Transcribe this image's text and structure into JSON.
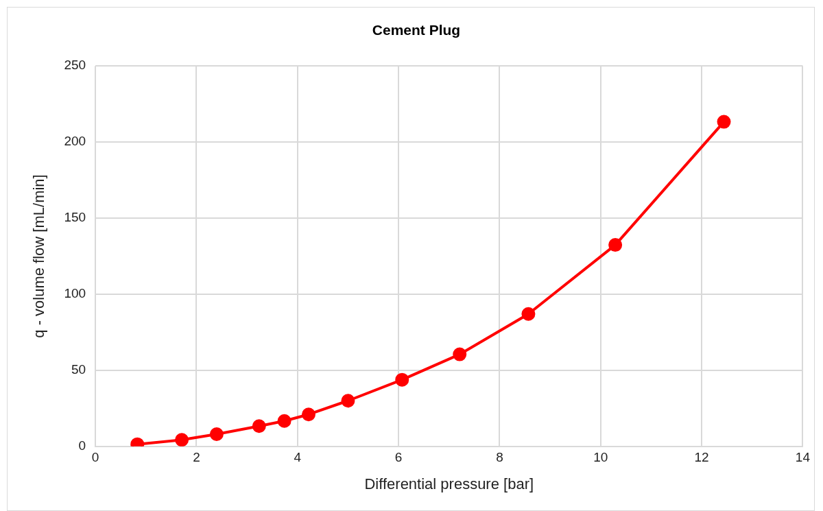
{
  "chart_data": {
    "type": "line",
    "title": "Cement Plug",
    "xlabel": "Differential pressure [bar]",
    "ylabel": "q - volume flow [mL/min]",
    "x": [
      0.83,
      1.71,
      2.4,
      3.24,
      3.74,
      4.22,
      5.0,
      6.07,
      7.21,
      8.57,
      10.29,
      12.44
    ],
    "series": [
      {
        "color": "#ff0000",
        "values": [
          1.4,
          4.3,
          8,
          13.3,
          16.7,
          21,
          30,
          43.8,
          60.5,
          87,
          132.4,
          213.3
        ]
      }
    ],
    "xlim": [
      0,
      14
    ],
    "xticks": [
      0,
      2,
      4,
      6,
      8,
      10,
      12,
      14
    ],
    "ylim": [
      0,
      250
    ],
    "yticks": [
      0,
      50,
      100,
      150,
      200,
      250
    ],
    "grid": true,
    "legend": false,
    "marker": "circle",
    "line_style": "solid"
  }
}
